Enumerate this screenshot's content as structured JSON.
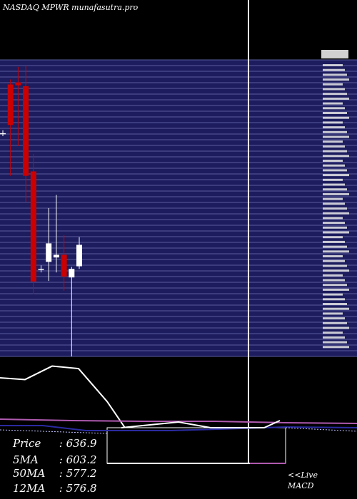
{
  "header": {
    "title": "NASDAQ MPWR munafasutra.pro"
  },
  "info": [
    {
      "label": "Price",
      "sep": " : ",
      "value": "636.9"
    },
    {
      "label": "5MA",
      "sep": " : ",
      "value": "603.2"
    },
    {
      "label": "50MA",
      "sep": " : ",
      "value": "577.2"
    },
    {
      "label": "12MA",
      "sep": " : ",
      "value": "576.8"
    }
  ],
  "macd": {
    "live_label": "<<Live",
    "macd_label": "MACD"
  },
  "colors": {
    "background": "#000000",
    "panel": "#1c1c5e",
    "grid": "#5a5a9e",
    "up": "#ffffff",
    "down": "#cc0000",
    "ma_line": "#ffffff",
    "purple_line": "#b05ab0",
    "blue_line": "#2a2aa0"
  },
  "chart_data": {
    "type": "candlestick",
    "ylim": [
      0,
      100
    ],
    "candles": [
      {
        "o": 76.0,
        "h": 77.0,
        "l": 75.0,
        "c": 76.0
      },
      {
        "o": 92.6,
        "h": 94.3,
        "l": 61.5,
        "c": 78.8
      },
      {
        "o": 93.3,
        "h": 98.6,
        "l": 71.6,
        "c": 92.3
      },
      {
        "o": 92.0,
        "h": 99.0,
        "l": 52.6,
        "c": 61.5
      },
      {
        "o": 63.0,
        "h": 69.0,
        "l": 21.2,
        "c": 25.5
      },
      {
        "o": 29.8,
        "h": 31.0,
        "l": 28.6,
        "c": 29.8
      },
      {
        "o": 32.2,
        "h": 50.5,
        "l": 25.7,
        "c": 38.5
      },
      {
        "o": 33.7,
        "h": 55.0,
        "l": 28.6,
        "c": 34.6
      },
      {
        "o": 34.6,
        "h": 41.3,
        "l": 22.4,
        "c": 27.2
      },
      {
        "o": 26.9,
        "h": 30.5,
        "l": 0.0,
        "c": 29.8
      },
      {
        "o": 30.7,
        "h": 40.6,
        "l": 29.8,
        "c": 38.0
      }
    ],
    "ma_line": [
      20,
      19.3,
      24.7,
      23.7,
      10.5,
      0
    ],
    "macd_line": [
      30,
      60,
      70,
      60,
      80,
      60,
      80,
      40
    ],
    "signal_line": [
      18,
      17,
      16,
      16,
      16,
      16,
      14,
      12
    ]
  }
}
